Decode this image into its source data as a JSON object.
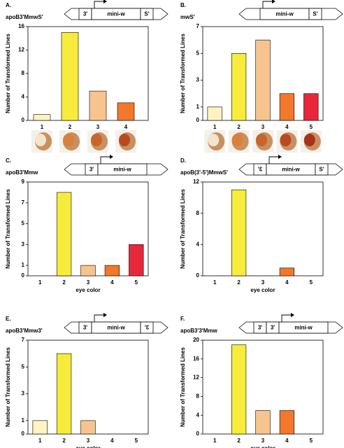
{
  "chart_data": [
    {
      "type": "bar",
      "panel": "A.",
      "construct": "apoB3'MmwS'",
      "insert_parts": [
        {
          "label": "3'",
          "mirrored": false
        },
        {
          "label": "mini-w",
          "mirrored": false
        },
        {
          "label": "S'",
          "mirrored": false
        }
      ],
      "ylabel": "Number of Transformed Lines",
      "categories": [
        "1",
        "2",
        "3",
        "4"
      ],
      "values": [
        1,
        15,
        5,
        3
      ],
      "colors": [
        "#fdf4c0",
        "#f7ec3c",
        "#f8c48e",
        "#f2782c"
      ],
      "ylim": [
        0,
        16
      ],
      "yticks": [
        0,
        4,
        8,
        12,
        16
      ],
      "eye_photos": true
    },
    {
      "type": "bar",
      "panel": "B.",
      "construct": "mwS'",
      "insert_parts": [
        {
          "label": "mini-w",
          "mirrored": false
        },
        {
          "label": "S'",
          "mirrored": false
        }
      ],
      "ylabel": "Number of Transformed Lines",
      "categories": [
        "1",
        "2",
        "3",
        "4",
        "5"
      ],
      "values": [
        1,
        5,
        6,
        2,
        2
      ],
      "colors": [
        "#fdf4c0",
        "#f7ec3c",
        "#f8c48e",
        "#f2782c",
        "#e8283a"
      ],
      "ylim": [
        0,
        7
      ],
      "yticks": [
        0,
        1,
        3,
        5,
        7
      ],
      "eye_photos": true
    },
    {
      "type": "bar",
      "panel": "C.",
      "construct": "apoB3'Mmw",
      "insert_parts": [
        {
          "label": "3'",
          "mirrored": false
        },
        {
          "label": "mini-w",
          "mirrored": false
        }
      ],
      "ylabel": "Number of Transformed Lines",
      "xlabel": "eye color",
      "categories": [
        "1",
        "2",
        "3",
        "4",
        "5"
      ],
      "values": [
        0,
        8,
        1,
        1,
        3
      ],
      "colors": [
        "#fdf4c0",
        "#f7ec3c",
        "#f8c48e",
        "#f2782c",
        "#e8283a"
      ],
      "ylim": [
        0,
        9
      ],
      "yticks": [
        0,
        1,
        3,
        5,
        7,
        9
      ]
    },
    {
      "type": "bar",
      "panel": "D.",
      "construct": "apoB(3'-5')MmwS'",
      "insert_parts": [
        {
          "label": "3'",
          "mirrored": true
        },
        {
          "label": "mini-w",
          "mirrored": false
        },
        {
          "label": "S'",
          "mirrored": false
        }
      ],
      "ylabel": "Number of Transformed Lines",
      "xlabel": "eye color",
      "categories": [
        "1",
        "2",
        "3",
        "4",
        "5"
      ],
      "values": [
        0,
        11,
        0,
        1,
        0
      ],
      "colors": [
        "#fdf4c0",
        "#f7ec3c",
        "#f8c48e",
        "#f2782c",
        "#e8283a"
      ],
      "ylim": [
        0,
        12
      ],
      "yticks": [
        0,
        4,
        8,
        12
      ]
    },
    {
      "type": "bar",
      "panel": "E.",
      "construct": "apoB3'Mmw3'",
      "insert_parts": [
        {
          "label": "3'",
          "mirrored": false
        },
        {
          "label": "mini-w",
          "mirrored": false
        },
        {
          "label": "3'",
          "mirrored": true
        }
      ],
      "ylabel": "Number of Transformed Lines",
      "xlabel": "eye color",
      "categories": [
        "1",
        "2",
        "3",
        "4",
        "5"
      ],
      "values": [
        1,
        6,
        1,
        0,
        0
      ],
      "colors": [
        "#fdf4c0",
        "#f7ec3c",
        "#f8c48e",
        "#f2782c",
        "#e8283a"
      ],
      "ylim": [
        0,
        7
      ],
      "yticks": [
        0,
        1,
        3,
        5,
        7
      ]
    },
    {
      "type": "bar",
      "panel": "F.",
      "construct": "apoB3'3'Mmw",
      "insert_parts": [
        {
          "label": "3'",
          "mirrored": false
        },
        {
          "label": "3'",
          "mirrored": false
        },
        {
          "label": "mini-w",
          "mirrored": false
        }
      ],
      "ylabel": "Number of Transformed Lines",
      "xlabel": "eye color",
      "categories": [
        "1",
        "2",
        "3",
        "4",
        "5"
      ],
      "values": [
        0,
        19,
        5,
        5,
        0
      ],
      "colors": [
        "#fdf4c0",
        "#f7ec3c",
        "#f8c48e",
        "#f2782c",
        "#e8283a"
      ],
      "ylim": [
        0,
        20
      ],
      "yticks": [
        0,
        4,
        8,
        12,
        16,
        20
      ]
    }
  ]
}
